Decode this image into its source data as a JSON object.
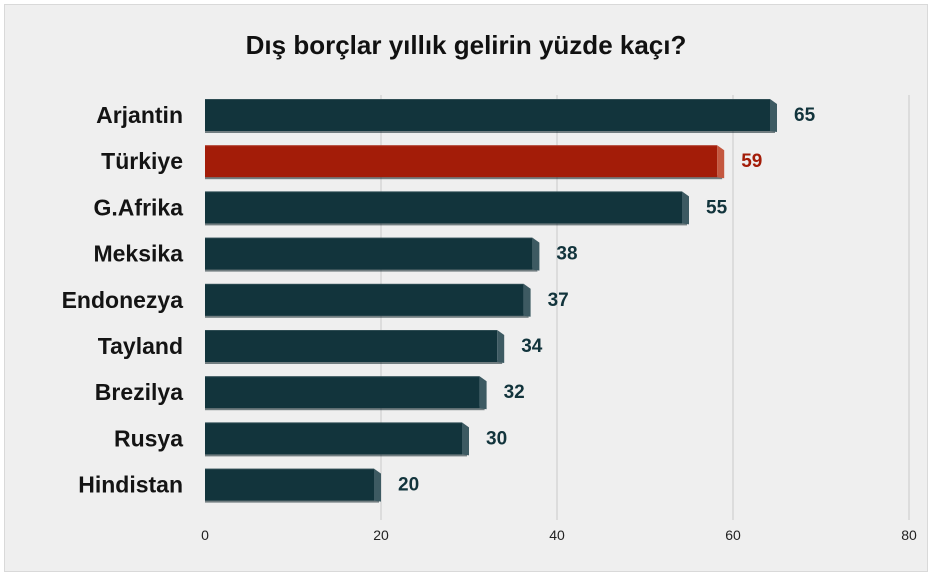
{
  "chart_data": {
    "type": "bar",
    "orientation": "horizontal",
    "title": "Dış borçlar yıllık gelirin yüzde kaçı?",
    "xlabel": "",
    "ylabel": "",
    "categories": [
      "Arjantin",
      "Türkiye",
      "G.Afrika",
      "Meksika",
      "Endonezya",
      "Tayland",
      "Brezilya",
      "Rusya",
      "Hindistan"
    ],
    "values": [
      65,
      59,
      55,
      38,
      37,
      34,
      32,
      30,
      20
    ],
    "highlight": "Türkiye",
    "xlim": [
      0,
      80
    ],
    "xticks": [
      0,
      20,
      40,
      60,
      80
    ],
    "grid": "vertical",
    "colors": {
      "bar": "#12343c",
      "bar_side": "#3d5a62",
      "highlight": "#a31c08",
      "highlight_side": "#c4573f",
      "label": "#12343c",
      "highlight_label": "#a31c08",
      "grid": "#c9c9c9",
      "background": "#efefef"
    }
  }
}
